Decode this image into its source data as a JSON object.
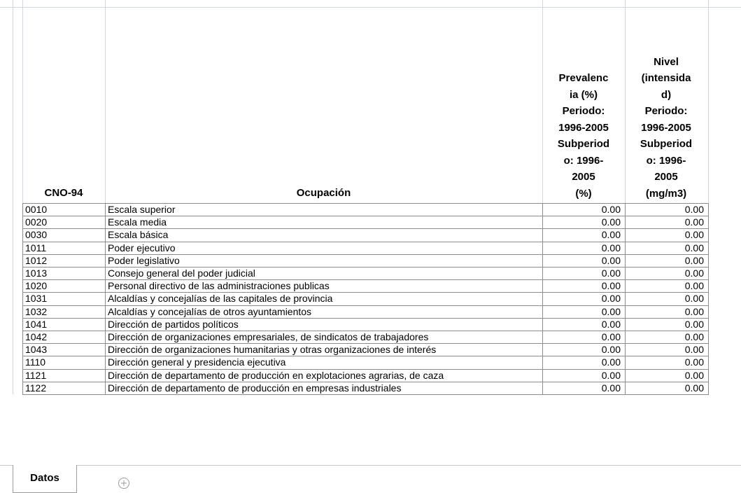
{
  "sheet": {
    "header": {
      "code": "CNO-94",
      "occupation": "Ocupación",
      "prevalence": [
        "Prevalenc",
        "ia (%)",
        "Periodo:",
        "1996-2005",
        "Subperiod",
        "o: 1996-",
        "2005",
        "(%)"
      ],
      "level": [
        "Nivel",
        "(intensida",
        "d)",
        "Periodo:",
        "1996-2005",
        "Subperiod",
        "o: 1996-",
        "2005",
        "(mg/m3)"
      ]
    },
    "rows": [
      [
        "0010",
        "Escala superior",
        "0.00",
        "0.00"
      ],
      [
        "0020",
        "Escala media",
        "0.00",
        "0.00"
      ],
      [
        "0030",
        "Escala básica",
        "0.00",
        "0.00"
      ],
      [
        "1011",
        "Poder ejecutivo",
        "0.00",
        "0.00"
      ],
      [
        "1012",
        "Poder legislativo",
        "0.00",
        "0.00"
      ],
      [
        "1013",
        "Consejo general del poder judicial",
        "0.00",
        "0.00"
      ],
      [
        "1020",
        "Personal directivo de las administraciones publicas",
        "0.00",
        "0.00"
      ],
      [
        "1031",
        "Alcaldías y concejalías de las capitales de provincia",
        "0.00",
        "0.00"
      ],
      [
        "1032",
        "Alcaldías y concejalías de otros ayuntamientos",
        "0.00",
        "0.00"
      ],
      [
        "1041",
        "Dirección de partidos políticos",
        "0.00",
        "0.00"
      ],
      [
        "1042",
        "Dirección de organizaciones empresariales, de sindicatos de trabajadores",
        "0.00",
        "0.00"
      ],
      [
        "1043",
        "Dirección de organizaciones humanitarias y otras organizaciones de interés",
        "0.00",
        "0.00"
      ],
      [
        "1110",
        "Dirección general y presidencia ejecutiva",
        "0.00",
        "0.00"
      ],
      [
        "1121",
        "Dirección de departamento de producción en explotaciones agrarias, de caza",
        "0.00",
        "0.00"
      ],
      [
        "1122",
        "Dirección de departamento de producción en empresas industriales",
        "0.00",
        "0.00"
      ]
    ],
    "tabs": [
      "Datos"
    ]
  }
}
